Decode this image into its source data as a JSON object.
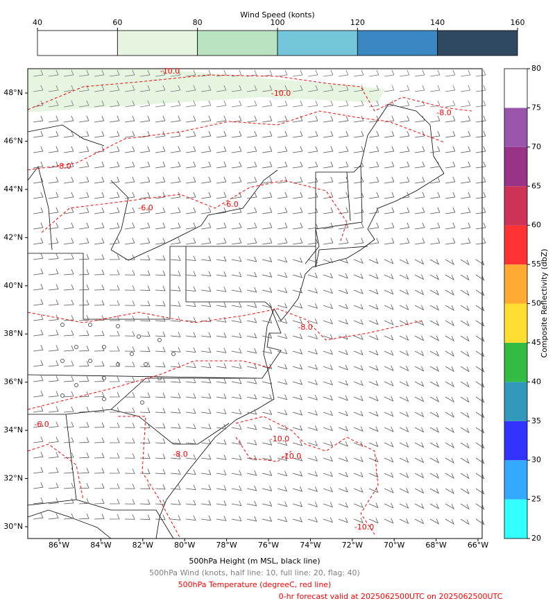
{
  "wind_colorbar": {
    "label": "Wind Speed (konts)",
    "ticks": [
      40,
      60,
      80,
      100,
      120,
      140,
      160
    ],
    "colors": [
      "#ffffff",
      "#e5f5e0",
      "#b8e2c0",
      "#74c4da",
      "#3b87c2",
      "#2f4a60"
    ]
  },
  "reflectivity_colorbar": {
    "label": "Composite Reflectivity (dbZ)",
    "ticks": [
      20,
      25,
      30,
      35,
      40,
      45,
      50,
      55,
      60,
      65,
      70,
      75,
      80
    ],
    "colors": [
      "#33ffff",
      "#33aaff",
      "#3333ff",
      "#3399bb",
      "#33bb44",
      "#ffdd33",
      "#ffaa33",
      "#ff3333",
      "#cc3355",
      "#993388",
      "#9955aa",
      "#ffffff"
    ]
  },
  "map": {
    "lat_ticks": [
      {
        "value": 30,
        "label": "30°N"
      },
      {
        "value": 32,
        "label": "32°N"
      },
      {
        "value": 34,
        "label": "34°N"
      },
      {
        "value": 36,
        "label": "36°N"
      },
      {
        "value": 38,
        "label": "38°N"
      },
      {
        "value": 40,
        "label": "40°N"
      },
      {
        "value": 42,
        "label": "42°N"
      },
      {
        "value": 44,
        "label": "44°N"
      },
      {
        "value": 46,
        "label": "46°N"
      },
      {
        "value": 48,
        "label": "48°N"
      }
    ],
    "lon_ticks": [
      {
        "value": -86,
        "label": "86°W"
      },
      {
        "value": -84,
        "label": "84°W"
      },
      {
        "value": -82,
        "label": "82°W"
      },
      {
        "value": -80,
        "label": "80°W"
      },
      {
        "value": -78,
        "label": "78°W"
      },
      {
        "value": -76,
        "label": "76°W"
      },
      {
        "value": -74,
        "label": "74°W"
      },
      {
        "value": -72,
        "label": "72°W"
      },
      {
        "value": -70,
        "label": "70°W"
      },
      {
        "value": -68,
        "label": "68°W"
      },
      {
        "value": -66,
        "label": "66°W"
      }
    ],
    "contour_labels": [
      "-10.0",
      "-10.0",
      "-8.0",
      "-8.0",
      "-6.0",
      "-6.0",
      "-8.0",
      "-10.0",
      "-10.0",
      "-8.0",
      "-6.0",
      "-10.0"
    ]
  },
  "captions": [
    {
      "text": "500hPa Height (m MSL, black line)",
      "color": "#000000"
    },
    {
      "text": "500hPa Wind (knots, half line: 10, full line: 20, flag: 40)",
      "color": "#808080"
    },
    {
      "text": "500hPa Temperature (degreeC, red line)",
      "color": "#ff0000"
    },
    {
      "text": "0-hr forecast valid at 2025062500UTC on 2025062500UTC",
      "color": "#ff0000"
    }
  ]
}
